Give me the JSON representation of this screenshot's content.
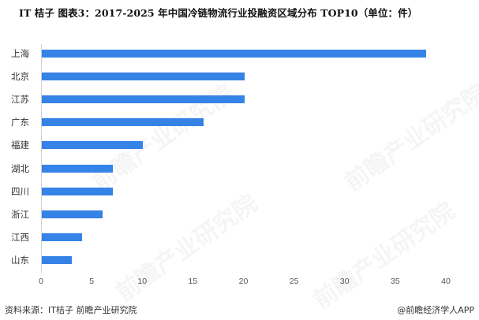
{
  "header": {
    "title": "IT 桔子  图表3：2017-2025 年中国冷链物流行业投融资区域分布 TOP10（单位：件）"
  },
  "footer": {
    "source": "资料来源：IT桔子 前瞻产业研究院",
    "brand": "@前瞻经济学人APP"
  },
  "watermark": {
    "text": "前瞻产业研究院"
  },
  "colors": {
    "bar": "#3583e6",
    "axis": "#d0d0d0"
  },
  "chart_data": {
    "type": "bar",
    "orientation": "horizontal",
    "title": "2017-2025 年中国冷链物流行业投融资区域分布 TOP10（单位：件）",
    "xlabel": "",
    "ylabel": "",
    "categories": [
      "上海",
      "北京",
      "江苏",
      "广东",
      "福建",
      "湖北",
      "四川",
      "浙江",
      "江西",
      "山东"
    ],
    "values": [
      38,
      20,
      20,
      16,
      10,
      7,
      7,
      6,
      4,
      3
    ],
    "xlim": [
      0,
      40
    ],
    "xticks": [
      "0",
      "5",
      "10",
      "15",
      "20",
      "25",
      "30",
      "35",
      "40"
    ],
    "grid": false,
    "legend": null,
    "unit": "件"
  }
}
